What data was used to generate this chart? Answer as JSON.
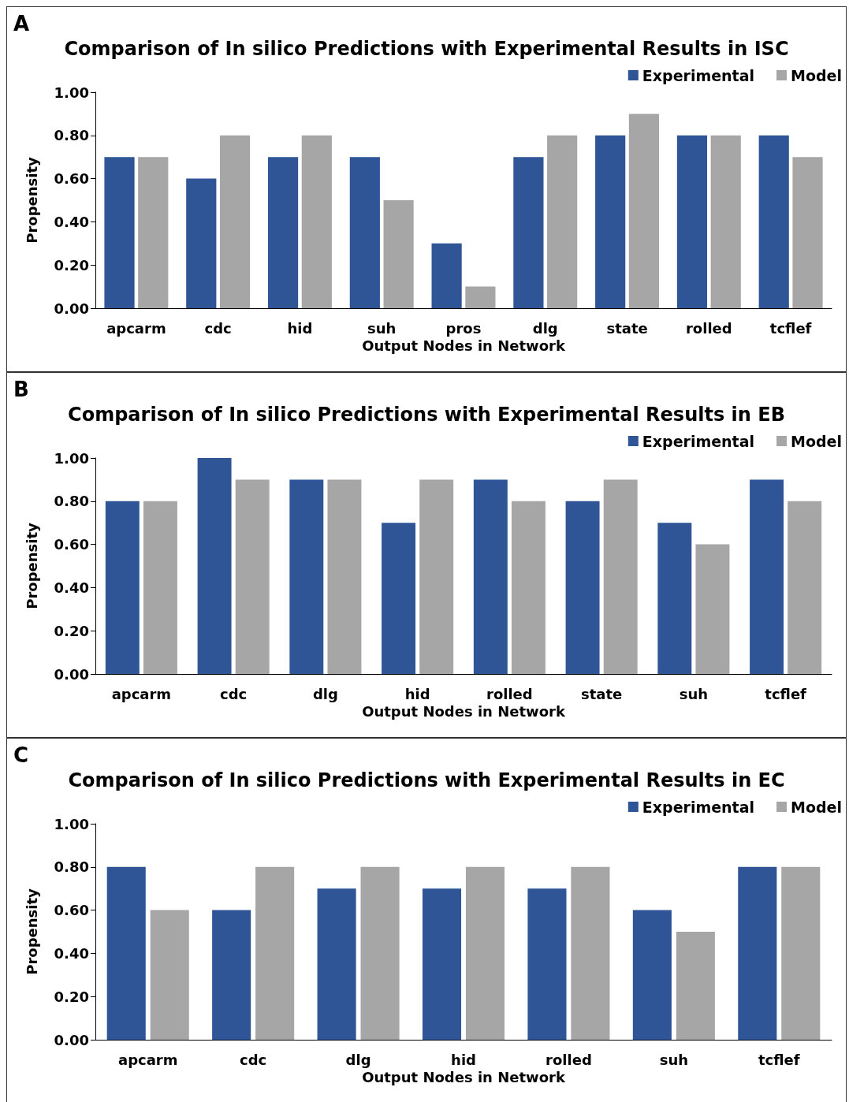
{
  "chart_data": [
    {
      "type": "bar",
      "title": "Comparison of In silico Predictions with Experimental Results in ISC",
      "xlabel": "Output Nodes in Network",
      "ylabel": "Propensity",
      "annotations": [
        "A"
      ],
      "categories": [
        "apcarm",
        "cdc",
        "hid",
        "suh",
        "pros",
        "dlg",
        "state",
        "rolled",
        "tcflef"
      ],
      "series": [
        {
          "name": "Experimental",
          "color": "#2f5597",
          "values": [
            0.7,
            0.6,
            0.7,
            0.7,
            0.3,
            0.7,
            0.8,
            0.8,
            0.8
          ]
        },
        {
          "name": "Model",
          "color": "#a6a6a6",
          "values": [
            0.7,
            0.8,
            0.8,
            0.5,
            0.1,
            0.8,
            0.9,
            0.8,
            0.7
          ]
        }
      ],
      "ylim": [
        0,
        1
      ],
      "yticks": [
        {
          "value": 0,
          "label": "0.00"
        },
        {
          "value": 0.2,
          "label": "0.20"
        },
        {
          "value": 0.4,
          "label": "0.40"
        },
        {
          "value": 0.6,
          "label": "0.60"
        },
        {
          "value": 0.8,
          "label": "0.80"
        },
        {
          "value": 1,
          "label": "1.00"
        }
      ],
      "grid": false,
      "legend": "top right"
    },
    {
      "type": "bar",
      "title": "Comparison of In silico Predictions with Experimental Results in EB",
      "xlabel": "Output Nodes in Network",
      "ylabel": "Propensity",
      "annotations": [
        "B"
      ],
      "categories": [
        "apcarm",
        "cdc",
        "dlg",
        "hid",
        "rolled",
        "state",
        "suh",
        "tcflef"
      ],
      "series": [
        {
          "name": "Experimental",
          "color": "#2f5597",
          "values": [
            0.8,
            1.0,
            0.9,
            0.7,
            0.9,
            0.8,
            0.7,
            0.9
          ]
        },
        {
          "name": "Model",
          "color": "#a6a6a6",
          "values": [
            0.8,
            0.9,
            0.9,
            0.9,
            0.8,
            0.9,
            0.6,
            0.8
          ]
        }
      ],
      "ylim": [
        0,
        1
      ],
      "yticks": [
        {
          "value": 0,
          "label": "0.00"
        },
        {
          "value": 0.2,
          "label": "0.20"
        },
        {
          "value": 0.4,
          "label": "0.40"
        },
        {
          "value": 0.6,
          "label": "0.60"
        },
        {
          "value": 0.8,
          "label": "0.80"
        },
        {
          "value": 1,
          "label": "1.00"
        }
      ],
      "grid": false,
      "legend": "top right"
    },
    {
      "type": "bar",
      "title": "Comparison of In silico Predictions with Experimental Results in EC",
      "xlabel": "Output Nodes in Network",
      "ylabel": "Propensity",
      "annotations": [
        "C"
      ],
      "categories": [
        "apcarm",
        "cdc",
        "dlg",
        "hid",
        "rolled",
        "suh",
        "tcflef"
      ],
      "series": [
        {
          "name": "Experimental",
          "color": "#2f5597",
          "values": [
            0.8,
            0.6,
            0.7,
            0.7,
            0.7,
            0.6,
            0.8
          ]
        },
        {
          "name": "Model",
          "color": "#a6a6a6",
          "values": [
            0.6,
            0.8,
            0.8,
            0.8,
            0.8,
            0.5,
            0.8
          ]
        }
      ],
      "ylim": [
        0,
        1
      ],
      "yticks": [
        {
          "value": 0,
          "label": "0.00"
        },
        {
          "value": 0.2,
          "label": "0.20"
        },
        {
          "value": 0.4,
          "label": "0.40"
        },
        {
          "value": 0.6,
          "label": "0.60"
        },
        {
          "value": 0.8,
          "label": "0.80"
        },
        {
          "value": 1,
          "label": "1.00"
        }
      ],
      "grid": false,
      "legend": "top right"
    }
  ]
}
